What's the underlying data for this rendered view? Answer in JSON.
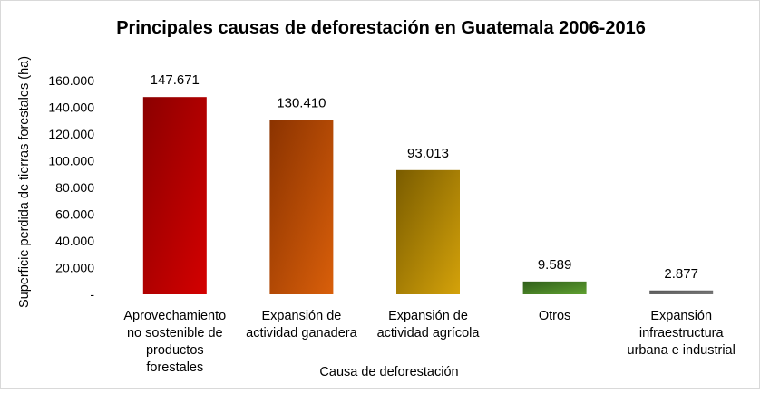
{
  "chart_data": {
    "type": "bar",
    "title": "Principales causas de deforestación en Guatemala 2006-2016",
    "xlabel": "Causa de deforestación",
    "ylabel": "Superficie perdida de tierras forestales (ha)",
    "ylim": [
      0,
      160000
    ],
    "yticks": [
      0,
      20000,
      40000,
      60000,
      80000,
      100000,
      120000,
      140000,
      160000
    ],
    "ytick_labels": [
      "-",
      "20.000",
      "40.000",
      "60.000",
      "80.000",
      "100.000",
      "120.000",
      "140.000",
      "160.000"
    ],
    "grid": false,
    "categories": [
      [
        "Aprovechamiento",
        "no sostenible de",
        "productos",
        "forestales"
      ],
      [
        "Expansión de",
        "actividad ganadera"
      ],
      [
        "Expansión de",
        "actividad agrícola"
      ],
      [
        "Otros"
      ],
      [
        "Expansión",
        "infraestructura",
        "urbana e industrial"
      ]
    ],
    "values": [
      147671,
      130410,
      93013,
      9589,
      2877
    ],
    "data_labels": [
      "147.671",
      "130.410",
      "93.013",
      "9.589",
      "2.877"
    ],
    "colors": [
      [
        "#8b0000",
        "#d40000"
      ],
      [
        "#8b3300",
        "#d95f0a"
      ],
      [
        "#7a5c00",
        "#d4a20a"
      ],
      [
        "#2f5e1a",
        "#5fa030"
      ],
      [
        "#555555",
        "#7a7a7a"
      ]
    ]
  }
}
